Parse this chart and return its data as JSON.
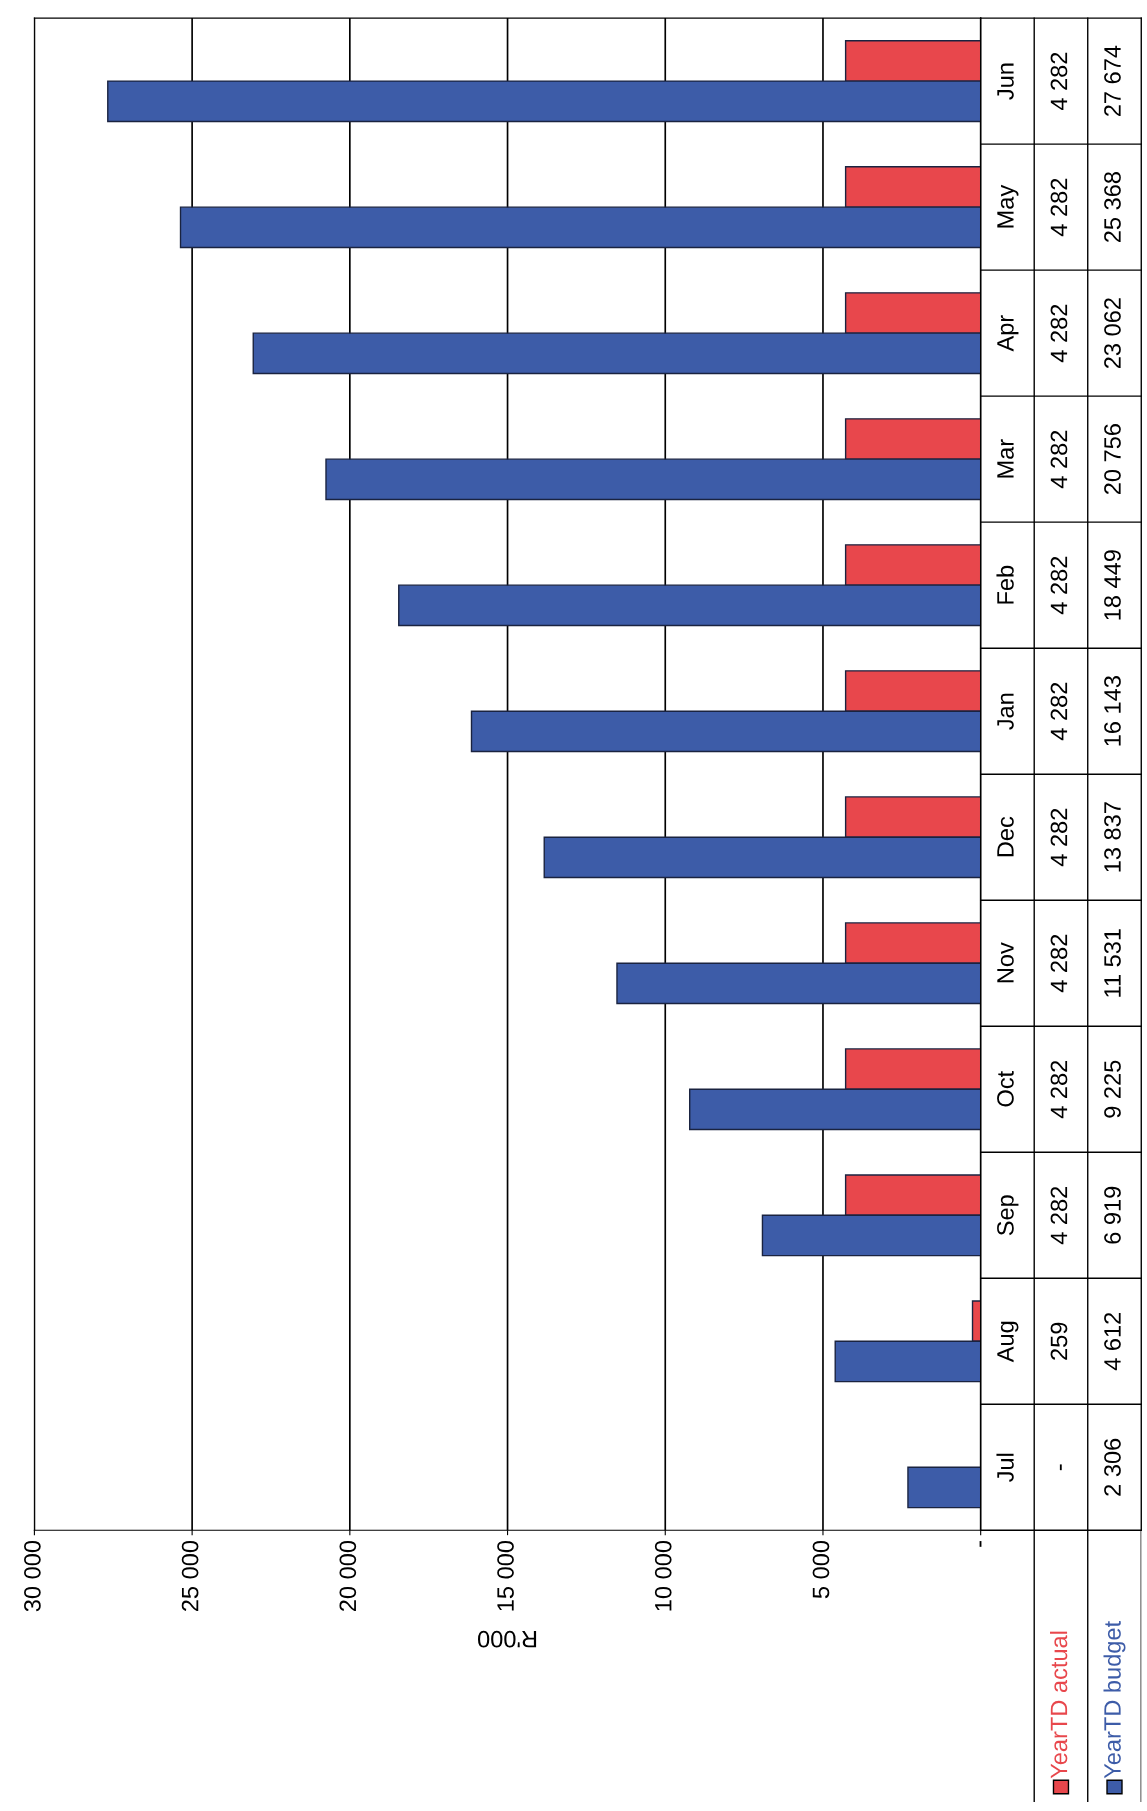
{
  "chart_data": {
    "type": "bar",
    "orientation": "horizontal",
    "categories": [
      "Jun",
      "May",
      "Apr",
      "Mar",
      "Feb",
      "Jan",
      "Dec",
      "Nov",
      "Oct",
      "Sep",
      "Aug",
      "Jul"
    ],
    "series": [
      {
        "name": "YearTD actual",
        "color": "#e8474c",
        "values": [
          4282,
          4282,
          4282,
          4282,
          4282,
          4282,
          4282,
          4282,
          4282,
          4282,
          259,
          0
        ],
        "value_labels": [
          "4 282",
          "4 282",
          "4 282",
          "4 282",
          "4 282",
          "4 282",
          "4 282",
          "4 282",
          "4 282",
          "4 282",
          "259",
          "-"
        ]
      },
      {
        "name": "YearTD budget",
        "color": "#3d5ca8",
        "values": [
          27674,
          25368,
          23062,
          20756,
          18449,
          16143,
          13837,
          11531,
          9225,
          6919,
          4612,
          2306
        ],
        "value_labels": [
          "27 674",
          "25 368",
          "23 062",
          "20 756",
          "18 449",
          "16 143",
          "13 837",
          "11 531",
          "9 225",
          "6 919",
          "4 612",
          "2 306"
        ]
      }
    ],
    "xlim": [
      30000,
      0
    ],
    "xticks": [
      {
        "value": 30000,
        "label": "30 000"
      },
      {
        "value": 25000,
        "label": "25 000"
      },
      {
        "value": 20000,
        "label": "20 000"
      },
      {
        "value": 15000,
        "label": "15 000"
      },
      {
        "value": 10000,
        "label": "10 000"
      },
      {
        "value": 5000,
        "label": "5 000"
      },
      {
        "value": 0,
        "label": "-"
      }
    ],
    "xlabel": "R'000",
    "grid": "x",
    "legend": "bottom",
    "tick_labels": "x"
  }
}
